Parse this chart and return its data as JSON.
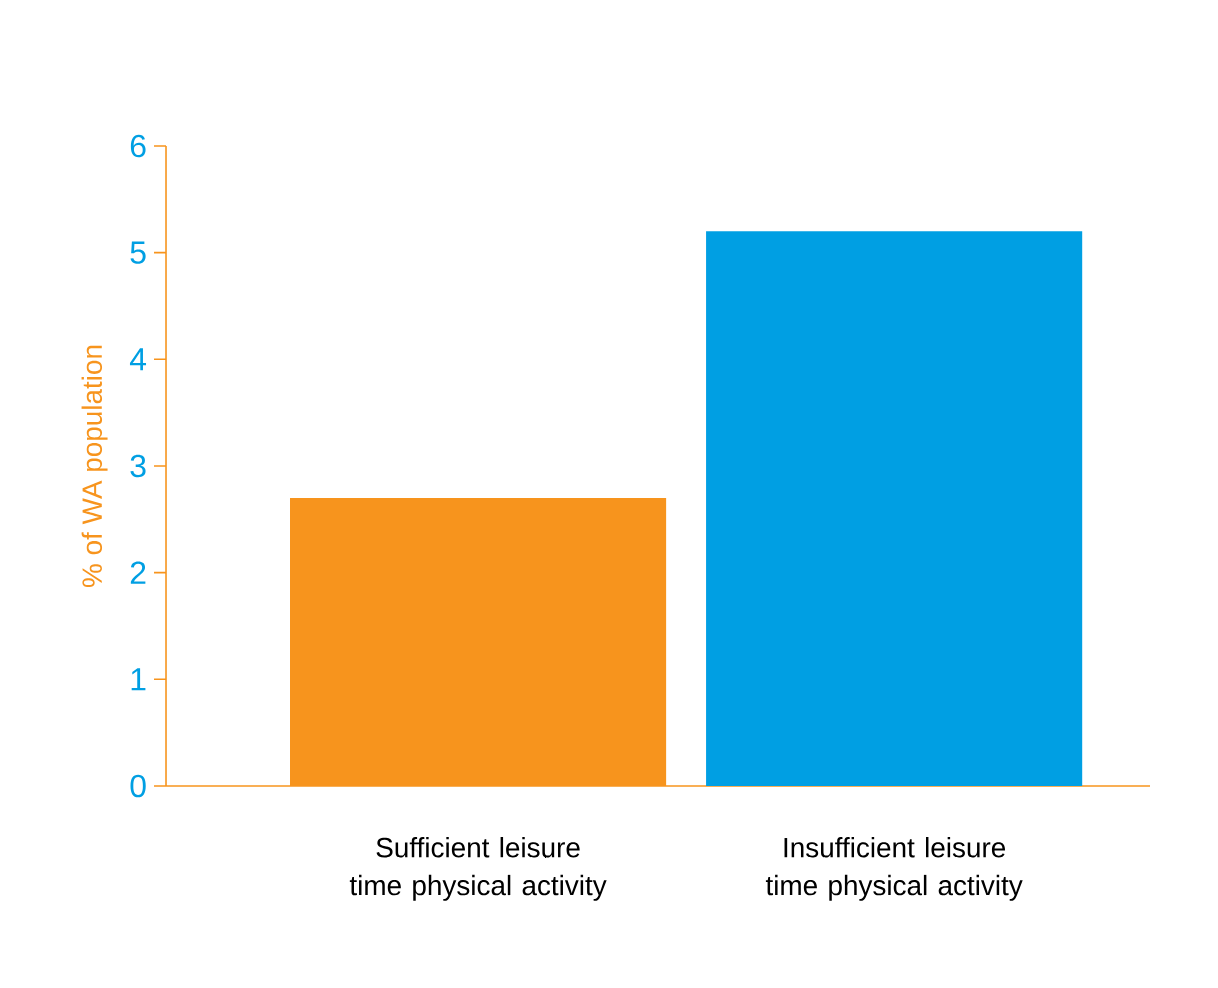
{
  "chart_data": {
    "type": "bar",
    "ylabel": "% of WA population",
    "categories": [
      "Sufficient leisure time physical activity",
      "Insufficient leisure time physical activity"
    ],
    "values": [
      2.7,
      5.2
    ],
    "colors": [
      "#f7941d",
      "#009fe3"
    ],
    "ylim": [
      0,
      6
    ],
    "yticks": [
      0,
      1,
      2,
      3,
      4,
      5,
      6
    ],
    "grid": false
  }
}
